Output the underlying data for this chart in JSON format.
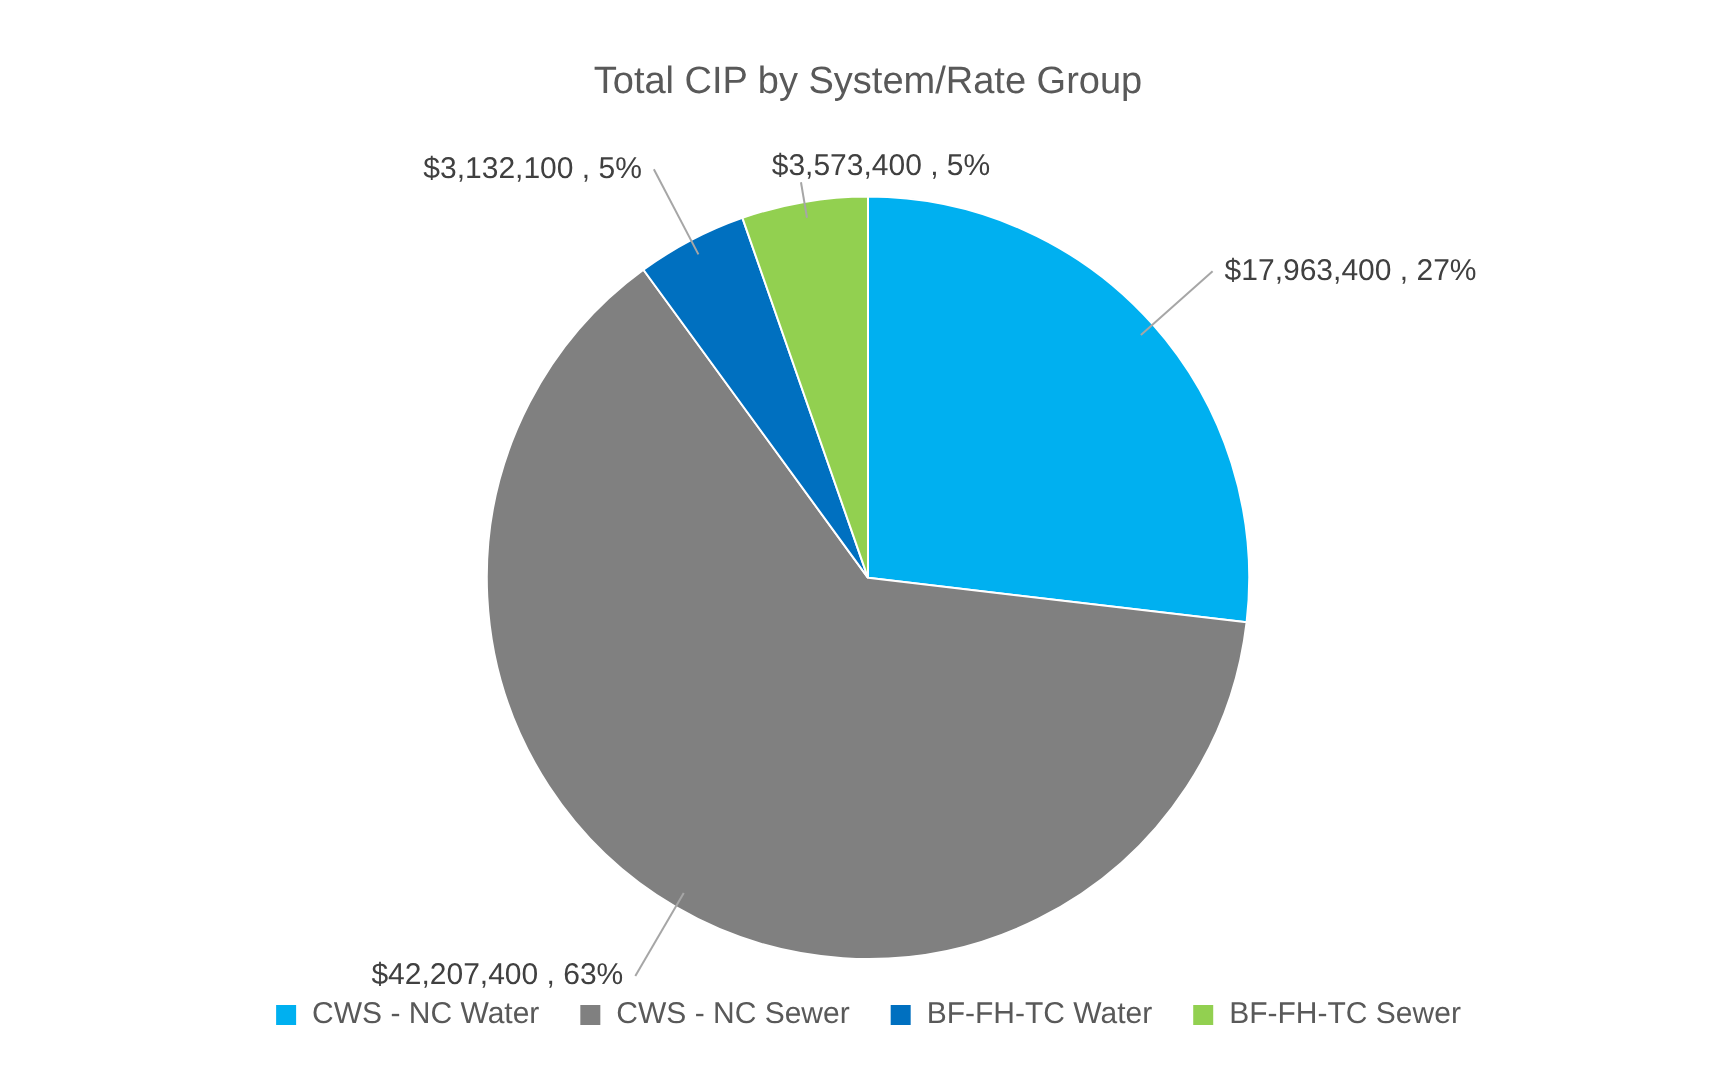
{
  "chart_data": {
    "type": "pie",
    "title": "Total CIP by System/Rate Group",
    "categories": [
      "CWS - NC Water",
      "CWS - NC Sewer",
      "BF-FH-TC Water",
      "BF-FH-TC Sewer"
    ],
    "values": [
      17963400,
      42207400,
      3132100,
      3573400
    ],
    "colors": [
      "#00b0f0",
      "#808080",
      "#0070c0",
      "#92d050"
    ],
    "value_labels": [
      "$17,963,400 , 27%",
      "$42,207,400 , 63%",
      "$3,132,100 , 5%",
      "$3,573,400 , 5%"
    ],
    "legend": "bottom"
  }
}
